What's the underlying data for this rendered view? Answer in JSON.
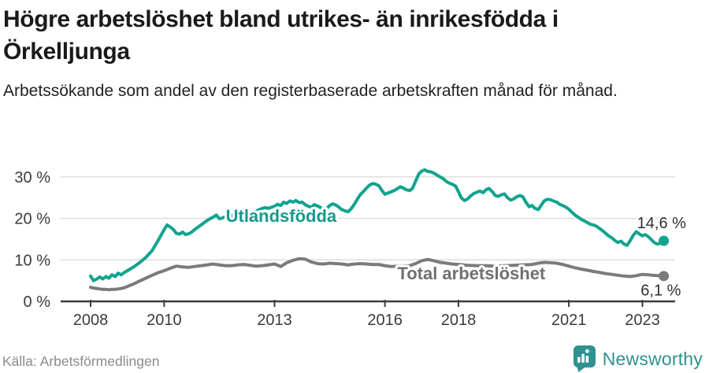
{
  "header": {
    "title": "Högre arbetslöshet bland utrikes- än inrikesfödda i Örkelljunga",
    "subtitle": "Arbetssökande som andel av den registerbaserade arbetskraften månad för månad."
  },
  "footer": {
    "source": "Källa: Arbetsförmedlingen",
    "brand": "Newsworthy",
    "brand_color": "#2f9190"
  },
  "chart_data": {
    "type": "line",
    "title": "",
    "xlabel": "",
    "ylabel": "",
    "grid": true,
    "legend_position": "inline-labels",
    "y_axis": {
      "ticks": [
        0,
        10,
        20,
        30
      ],
      "labels": [
        "0 %",
        "10 %",
        "20 %",
        "30 %"
      ],
      "range": [
        0,
        33
      ]
    },
    "x_axis": {
      "ticks": [
        2008,
        2010,
        2013,
        2016,
        2018,
        2021,
        2023
      ],
      "labels": [
        "2008",
        "2010",
        "2013",
        "2016",
        "2018",
        "2021",
        "2023"
      ],
      "range": [
        2007.2,
        2023.9
      ]
    },
    "series": [
      {
        "name": "Utlandsfödda",
        "color": "#12a38e",
        "label_color": "#16998b",
        "label_pos": {
          "year": 2013.18,
          "value": 20.7
        },
        "end_value": 14.6,
        "end_label": "14,6 %",
        "end_label_pos": {
          "year": 2023.52,
          "value": 19.0
        },
        "points": [
          [
            2008.0,
            6.1
          ],
          [
            2008.08,
            5.0
          ],
          [
            2008.17,
            5.4
          ],
          [
            2008.25,
            5.9
          ],
          [
            2008.33,
            5.4
          ],
          [
            2008.42,
            6.0
          ],
          [
            2008.5,
            5.6
          ],
          [
            2008.58,
            6.4
          ],
          [
            2008.67,
            6.0
          ],
          [
            2008.75,
            6.8
          ],
          [
            2008.83,
            6.4
          ],
          [
            2008.92,
            7.0
          ],
          [
            2009.0,
            7.4
          ],
          [
            2009.17,
            8.3
          ],
          [
            2009.33,
            9.3
          ],
          [
            2009.5,
            10.6
          ],
          [
            2009.67,
            12.2
          ],
          [
            2009.83,
            14.6
          ],
          [
            2010.0,
            17.3
          ],
          [
            2010.08,
            18.4
          ],
          [
            2010.17,
            17.9
          ],
          [
            2010.25,
            17.3
          ],
          [
            2010.33,
            16.4
          ],
          [
            2010.42,
            16.2
          ],
          [
            2010.5,
            16.7
          ],
          [
            2010.58,
            16.1
          ],
          [
            2010.67,
            16.3
          ],
          [
            2010.75,
            16.7
          ],
          [
            2010.83,
            17.3
          ],
          [
            2010.92,
            17.9
          ],
          [
            2011.0,
            18.4
          ],
          [
            2011.17,
            19.5
          ],
          [
            2011.33,
            20.3
          ],
          [
            2011.42,
            20.8
          ],
          [
            2011.5,
            19.9
          ],
          [
            2011.58,
            20.1
          ],
          [
            2011.67,
            20.4
          ],
          [
            2011.75,
            20.2
          ],
          [
            2011.83,
            20.7
          ],
          [
            2011.92,
            21.2
          ],
          [
            2012.0,
            21.6
          ],
          [
            2012.08,
            21.8
          ],
          [
            2012.17,
            21.3
          ],
          [
            2012.25,
            21.2
          ],
          [
            2012.33,
            21.5
          ],
          [
            2012.42,
            21.3
          ],
          [
            2012.5,
            21.7
          ],
          [
            2012.58,
            22.1
          ],
          [
            2012.67,
            22.4
          ],
          [
            2012.75,
            22.6
          ],
          [
            2012.83,
            22.4
          ],
          [
            2012.92,
            22.7
          ],
          [
            2013.0,
            22.9
          ],
          [
            2013.08,
            23.4
          ],
          [
            2013.17,
            23.1
          ],
          [
            2013.25,
            23.9
          ],
          [
            2013.33,
            23.6
          ],
          [
            2013.42,
            24.2
          ],
          [
            2013.5,
            23.9
          ],
          [
            2013.58,
            24.3
          ],
          [
            2013.67,
            23.8
          ],
          [
            2013.75,
            23.9
          ],
          [
            2013.83,
            23.3
          ],
          [
            2013.92,
            22.9
          ],
          [
            2014.0,
            22.7
          ],
          [
            2014.08,
            23.3
          ],
          [
            2014.17,
            23.0
          ],
          [
            2014.25,
            22.6
          ],
          [
            2014.33,
            22.3
          ],
          [
            2014.42,
            22.4
          ],
          [
            2014.5,
            23.1
          ],
          [
            2014.58,
            23.5
          ],
          [
            2014.67,
            23.2
          ],
          [
            2014.75,
            22.7
          ],
          [
            2014.83,
            22.1
          ],
          [
            2014.92,
            21.8
          ],
          [
            2015.0,
            21.6
          ],
          [
            2015.08,
            22.3
          ],
          [
            2015.17,
            23.4
          ],
          [
            2015.25,
            24.6
          ],
          [
            2015.33,
            25.7
          ],
          [
            2015.42,
            26.5
          ],
          [
            2015.5,
            27.3
          ],
          [
            2015.58,
            28.0
          ],
          [
            2015.67,
            28.4
          ],
          [
            2015.75,
            28.2
          ],
          [
            2015.83,
            27.9
          ],
          [
            2015.92,
            26.7
          ],
          [
            2016.0,
            25.8
          ],
          [
            2016.08,
            26.1
          ],
          [
            2016.17,
            26.4
          ],
          [
            2016.25,
            26.7
          ],
          [
            2016.33,
            27.1
          ],
          [
            2016.42,
            27.6
          ],
          [
            2016.5,
            27.3
          ],
          [
            2016.58,
            26.9
          ],
          [
            2016.67,
            26.7
          ],
          [
            2016.75,
            27.2
          ],
          [
            2016.83,
            28.9
          ],
          [
            2016.92,
            30.7
          ],
          [
            2017.0,
            31.4
          ],
          [
            2017.08,
            31.7
          ],
          [
            2017.17,
            31.3
          ],
          [
            2017.25,
            31.2
          ],
          [
            2017.33,
            30.9
          ],
          [
            2017.42,
            30.4
          ],
          [
            2017.5,
            30.0
          ],
          [
            2017.58,
            29.6
          ],
          [
            2017.67,
            28.9
          ],
          [
            2017.75,
            28.5
          ],
          [
            2017.83,
            28.2
          ],
          [
            2017.92,
            27.8
          ],
          [
            2018.0,
            26.4
          ],
          [
            2018.08,
            24.9
          ],
          [
            2018.17,
            24.3
          ],
          [
            2018.25,
            24.7
          ],
          [
            2018.33,
            25.4
          ],
          [
            2018.42,
            26.0
          ],
          [
            2018.5,
            26.3
          ],
          [
            2018.58,
            26.6
          ],
          [
            2018.67,
            26.2
          ],
          [
            2018.75,
            26.9
          ],
          [
            2018.83,
            27.2
          ],
          [
            2018.92,
            26.4
          ],
          [
            2019.0,
            25.5
          ],
          [
            2019.08,
            25.3
          ],
          [
            2019.17,
            25.7
          ],
          [
            2019.25,
            25.9
          ],
          [
            2019.33,
            25.0
          ],
          [
            2019.42,
            24.4
          ],
          [
            2019.5,
            24.7
          ],
          [
            2019.58,
            25.2
          ],
          [
            2019.67,
            25.5
          ],
          [
            2019.75,
            25.2
          ],
          [
            2019.83,
            23.9
          ],
          [
            2019.92,
            22.8
          ],
          [
            2020.0,
            23.1
          ],
          [
            2020.08,
            22.4
          ],
          [
            2020.17,
            22.1
          ],
          [
            2020.25,
            23.2
          ],
          [
            2020.33,
            24.2
          ],
          [
            2020.42,
            24.6
          ],
          [
            2020.5,
            24.5
          ],
          [
            2020.58,
            24.2
          ],
          [
            2020.67,
            23.9
          ],
          [
            2020.75,
            23.4
          ],
          [
            2020.83,
            23.1
          ],
          [
            2020.92,
            22.7
          ],
          [
            2021.0,
            22.2
          ],
          [
            2021.08,
            21.5
          ],
          [
            2021.17,
            20.8
          ],
          [
            2021.25,
            20.3
          ],
          [
            2021.33,
            19.8
          ],
          [
            2021.42,
            19.4
          ],
          [
            2021.5,
            19.0
          ],
          [
            2021.58,
            18.6
          ],
          [
            2021.67,
            18.4
          ],
          [
            2021.75,
            18.1
          ],
          [
            2021.83,
            17.6
          ],
          [
            2021.92,
            17.0
          ],
          [
            2022.0,
            16.4
          ],
          [
            2022.08,
            15.8
          ],
          [
            2022.17,
            15.3
          ],
          [
            2022.25,
            14.7
          ],
          [
            2022.33,
            14.2
          ],
          [
            2022.42,
            14.5
          ],
          [
            2022.5,
            13.8
          ],
          [
            2022.58,
            13.5
          ],
          [
            2022.67,
            14.7
          ],
          [
            2022.75,
            15.9
          ],
          [
            2022.83,
            16.8
          ],
          [
            2022.92,
            16.2
          ],
          [
            2023.0,
            15.8
          ],
          [
            2023.08,
            16.1
          ],
          [
            2023.17,
            15.5
          ],
          [
            2023.25,
            14.8
          ],
          [
            2023.33,
            14.1
          ],
          [
            2023.42,
            13.8
          ],
          [
            2023.5,
            14.1
          ],
          [
            2023.58,
            14.6
          ]
        ]
      },
      {
        "name": "Total arbetslöshet",
        "color": "#7b7b7d",
        "label_color": "#707074",
        "label_pos": {
          "year": 2018.35,
          "value": 6.8
        },
        "end_value": 6.1,
        "end_label": "6,1 %",
        "end_label_pos": {
          "year": 2023.5,
          "value": 2.75
        },
        "points": [
          [
            2008.0,
            3.4
          ],
          [
            2008.08,
            3.2
          ],
          [
            2008.17,
            3.1
          ],
          [
            2008.25,
            3.0
          ],
          [
            2008.33,
            2.9
          ],
          [
            2008.42,
            2.9
          ],
          [
            2008.5,
            2.8
          ],
          [
            2008.58,
            2.9
          ],
          [
            2008.67,
            2.9
          ],
          [
            2008.75,
            3.0
          ],
          [
            2008.83,
            3.1
          ],
          [
            2008.92,
            3.3
          ],
          [
            2009.0,
            3.6
          ],
          [
            2009.17,
            4.2
          ],
          [
            2009.33,
            4.9
          ],
          [
            2009.5,
            5.6
          ],
          [
            2009.67,
            6.3
          ],
          [
            2009.83,
            6.9
          ],
          [
            2010.0,
            7.4
          ],
          [
            2010.17,
            8.0
          ],
          [
            2010.33,
            8.5
          ],
          [
            2010.5,
            8.3
          ],
          [
            2010.67,
            8.2
          ],
          [
            2010.83,
            8.4
          ],
          [
            2011.0,
            8.6
          ],
          [
            2011.17,
            8.8
          ],
          [
            2011.33,
            9.0
          ],
          [
            2011.5,
            8.8
          ],
          [
            2011.67,
            8.6
          ],
          [
            2011.83,
            8.6
          ],
          [
            2012.0,
            8.8
          ],
          [
            2012.17,
            8.9
          ],
          [
            2012.33,
            8.7
          ],
          [
            2012.5,
            8.5
          ],
          [
            2012.67,
            8.6
          ],
          [
            2012.83,
            8.8
          ],
          [
            2013.0,
            9.0
          ],
          [
            2013.17,
            8.4
          ],
          [
            2013.33,
            9.3
          ],
          [
            2013.5,
            9.9
          ],
          [
            2013.67,
            10.3
          ],
          [
            2013.83,
            10.2
          ],
          [
            2014.0,
            9.5
          ],
          [
            2014.17,
            9.1
          ],
          [
            2014.33,
            9.0
          ],
          [
            2014.5,
            9.2
          ],
          [
            2014.67,
            9.1
          ],
          [
            2014.83,
            9.0
          ],
          [
            2015.0,
            8.8
          ],
          [
            2015.17,
            9.0
          ],
          [
            2015.33,
            9.1
          ],
          [
            2015.5,
            9.0
          ],
          [
            2015.67,
            8.9
          ],
          [
            2015.83,
            8.9
          ],
          [
            2016.0,
            8.6
          ],
          [
            2016.17,
            8.4
          ],
          [
            2016.33,
            8.5
          ],
          [
            2016.5,
            8.5
          ],
          [
            2016.67,
            8.6
          ],
          [
            2016.83,
            9.1
          ],
          [
            2017.0,
            9.8
          ],
          [
            2017.17,
            10.1
          ],
          [
            2017.33,
            9.8
          ],
          [
            2017.5,
            9.4
          ],
          [
            2017.67,
            9.2
          ],
          [
            2017.83,
            9.0
          ],
          [
            2018.0,
            8.9
          ],
          [
            2018.25,
            8.7
          ],
          [
            2018.5,
            8.6
          ],
          [
            2018.75,
            8.6
          ],
          [
            2019.0,
            8.5
          ],
          [
            2019.25,
            8.6
          ],
          [
            2019.5,
            8.7
          ],
          [
            2019.75,
            8.8
          ],
          [
            2020.0,
            8.9
          ],
          [
            2020.17,
            9.2
          ],
          [
            2020.33,
            9.4
          ],
          [
            2020.5,
            9.3
          ],
          [
            2020.67,
            9.2
          ],
          [
            2020.83,
            8.9
          ],
          [
            2021.0,
            8.5
          ],
          [
            2021.17,
            8.1
          ],
          [
            2021.33,
            7.8
          ],
          [
            2021.5,
            7.5
          ],
          [
            2021.67,
            7.2
          ],
          [
            2021.83,
            7.0
          ],
          [
            2022.0,
            6.7
          ],
          [
            2022.17,
            6.5
          ],
          [
            2022.33,
            6.3
          ],
          [
            2022.5,
            6.1
          ],
          [
            2022.67,
            6.0
          ],
          [
            2022.83,
            6.2
          ],
          [
            2023.0,
            6.5
          ],
          [
            2023.17,
            6.4
          ],
          [
            2023.25,
            6.3
          ],
          [
            2023.42,
            6.2
          ],
          [
            2023.58,
            6.1
          ]
        ]
      }
    ]
  }
}
